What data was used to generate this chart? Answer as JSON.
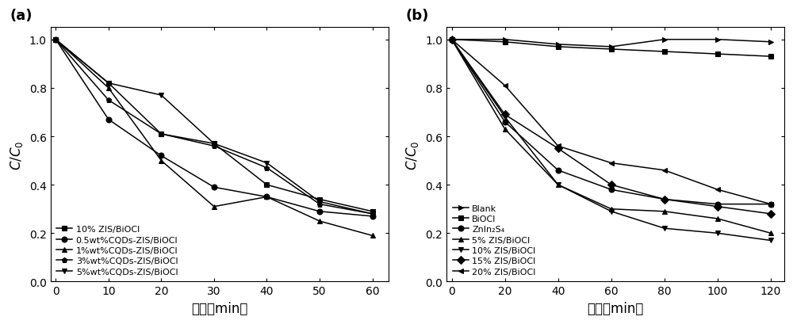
{
  "panel_a": {
    "xlabel": "时间（min）",
    "ylabel": "$C/C_0$",
    "label": "(a)",
    "xlim": [
      -1,
      63
    ],
    "ylim": [
      0.0,
      1.05
    ],
    "xticks": [
      0,
      10,
      20,
      30,
      40,
      50,
      60
    ],
    "yticks": [
      0.0,
      0.2,
      0.4,
      0.6,
      0.8,
      1.0
    ],
    "series": [
      {
        "label": "10% ZIS/BiOCl",
        "marker": "s",
        "x": [
          0,
          10,
          20,
          30,
          40,
          50,
          60
        ],
        "y": [
          1.0,
          0.82,
          0.61,
          0.57,
          0.4,
          0.34,
          0.29
        ]
      },
      {
        "label": "0.5wt%CQDs-ZIS/BiOCl",
        "marker": "o",
        "x": [
          0,
          10,
          20,
          30,
          40,
          50,
          60
        ],
        "y": [
          1.0,
          0.67,
          0.52,
          0.39,
          0.35,
          0.29,
          0.27
        ]
      },
      {
        "label": "1%wt%CQDs-ZIS/BiOCl",
        "marker": "^",
        "x": [
          0,
          10,
          20,
          30,
          40,
          50,
          60
        ],
        "y": [
          1.0,
          0.8,
          0.5,
          0.31,
          0.35,
          0.25,
          0.19
        ]
      },
      {
        "label": "3%wt%CQDs-ZIS/BiOCl",
        "marker": "p",
        "x": [
          0,
          10,
          20,
          30,
          40,
          50,
          60
        ],
        "y": [
          1.0,
          0.75,
          0.61,
          0.56,
          0.47,
          0.32,
          0.28
        ]
      },
      {
        "label": "5%wt%CQDs-ZIS/BiOCl",
        "marker": "v",
        "x": [
          0,
          10,
          20,
          30,
          40,
          50,
          60
        ],
        "y": [
          1.0,
          0.82,
          0.77,
          0.57,
          0.49,
          0.33,
          0.28
        ]
      }
    ]
  },
  "panel_b": {
    "xlabel": "时间（min）",
    "ylabel": "$C/C_0$",
    "label": "(b)",
    "xlim": [
      -2,
      125
    ],
    "ylim": [
      0.0,
      1.05
    ],
    "xticks": [
      0,
      20,
      40,
      60,
      80,
      100,
      120
    ],
    "yticks": [
      0.0,
      0.2,
      0.4,
      0.6,
      0.8,
      1.0
    ],
    "series": [
      {
        "label": "Blank",
        "marker": ">",
        "x": [
          0,
          20,
          40,
          60,
          80,
          100,
          120
        ],
        "y": [
          1.0,
          1.0,
          0.98,
          0.97,
          1.0,
          1.0,
          0.99
        ]
      },
      {
        "label": "BiOCl",
        "marker": "s",
        "x": [
          0,
          20,
          40,
          60,
          80,
          100,
          120
        ],
        "y": [
          1.0,
          0.99,
          0.97,
          0.96,
          0.95,
          0.94,
          0.93
        ]
      },
      {
        "label": "ZnIn₂S₄",
        "marker": "o",
        "x": [
          0,
          20,
          40,
          60,
          80,
          100,
          120
        ],
        "y": [
          1.0,
          0.66,
          0.46,
          0.38,
          0.34,
          0.32,
          0.32
        ]
      },
      {
        "label": "5% ZIS/BiOCl",
        "marker": "^",
        "x": [
          0,
          20,
          40,
          60,
          80,
          100,
          120
        ],
        "y": [
          1.0,
          0.63,
          0.4,
          0.3,
          0.29,
          0.26,
          0.2
        ]
      },
      {
        "label": "10% ZIS/BiOCl",
        "marker": "v",
        "x": [
          0,
          20,
          40,
          60,
          80,
          100,
          120
        ],
        "y": [
          1.0,
          0.68,
          0.4,
          0.29,
          0.22,
          0.2,
          0.17
        ]
      },
      {
        "label": "15% ZIS/BiOCl",
        "marker": "D",
        "x": [
          0,
          20,
          40,
          60,
          80,
          100,
          120
        ],
        "y": [
          1.0,
          0.69,
          0.55,
          0.4,
          0.34,
          0.31,
          0.28
        ]
      },
      {
        "label": "20% ZIS/BiOCl",
        "marker": "<",
        "x": [
          0,
          20,
          40,
          60,
          80,
          100,
          120
        ],
        "y": [
          1.0,
          0.81,
          0.56,
          0.49,
          0.46,
          0.38,
          0.32
        ]
      }
    ]
  }
}
